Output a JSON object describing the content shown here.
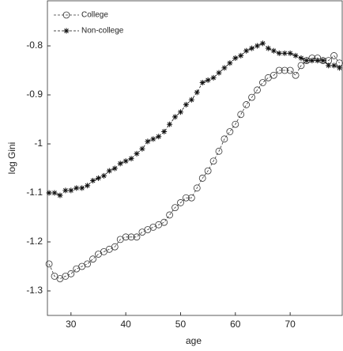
{
  "chart_data": {
    "type": "line",
    "xlabel": "age",
    "ylabel": "log Gini",
    "x": [
      26,
      27,
      28,
      29,
      30,
      31,
      32,
      33,
      34,
      35,
      36,
      37,
      38,
      39,
      40,
      41,
      42,
      43,
      44,
      45,
      46,
      47,
      48,
      49,
      50,
      51,
      52,
      53,
      54,
      55,
      56,
      57,
      58,
      59,
      60,
      61,
      62,
      63,
      64,
      65,
      66,
      67,
      68,
      69,
      70,
      71,
      72,
      73,
      74,
      75,
      76,
      77,
      78,
      79
    ],
    "series": [
      {
        "name": "College",
        "color": "#333333",
        "marker": "circle",
        "values": [
          -1.245,
          -1.27,
          -1.275,
          -1.27,
          -1.265,
          -1.255,
          -1.25,
          -1.245,
          -1.235,
          -1.225,
          -1.22,
          -1.215,
          -1.21,
          -1.195,
          -1.19,
          -1.19,
          -1.19,
          -1.18,
          -1.175,
          -1.17,
          -1.165,
          -1.16,
          -1.145,
          -1.13,
          -1.12,
          -1.11,
          -1.11,
          -1.09,
          -1.07,
          -1.055,
          -1.035,
          -1.015,
          -0.99,
          -0.975,
          -0.96,
          -0.94,
          -0.92,
          -0.905,
          -0.89,
          -0.875,
          -0.865,
          -0.86,
          -0.85,
          -0.85,
          -0.85,
          -0.86,
          -0.84,
          -0.83,
          -0.825,
          -0.825,
          -0.83,
          -0.83,
          -0.82,
          -0.835
        ]
      },
      {
        "name": "Non-college",
        "color": "#111111",
        "marker": "star",
        "values": [
          -1.1,
          -1.1,
          -1.105,
          -1.095,
          -1.095,
          -1.09,
          -1.09,
          -1.085,
          -1.075,
          -1.07,
          -1.065,
          -1.055,
          -1.05,
          -1.04,
          -1.035,
          -1.03,
          -1.02,
          -1.01,
          -0.995,
          -0.99,
          -0.985,
          -0.975,
          -0.96,
          -0.945,
          -0.935,
          -0.92,
          -0.91,
          -0.895,
          -0.875,
          -0.87,
          -0.865,
          -0.855,
          -0.845,
          -0.835,
          -0.825,
          -0.82,
          -0.81,
          -0.805,
          -0.8,
          -0.795,
          -0.805,
          -0.81,
          -0.815,
          -0.815,
          -0.815,
          -0.82,
          -0.825,
          -0.83,
          -0.83,
          -0.83,
          -0.83,
          -0.84,
          -0.84,
          -0.845
        ]
      }
    ],
    "xlim": [
      25.7,
      79.5
    ],
    "xticks": [
      30,
      40,
      50,
      60,
      70
    ],
    "ylim": [
      -1.35,
      -0.708
    ],
    "yticks": [
      -1.3,
      -1.2,
      -1.1,
      -1,
      -0.9,
      -0.8
    ],
    "grid": false,
    "legend": "upper left"
  }
}
